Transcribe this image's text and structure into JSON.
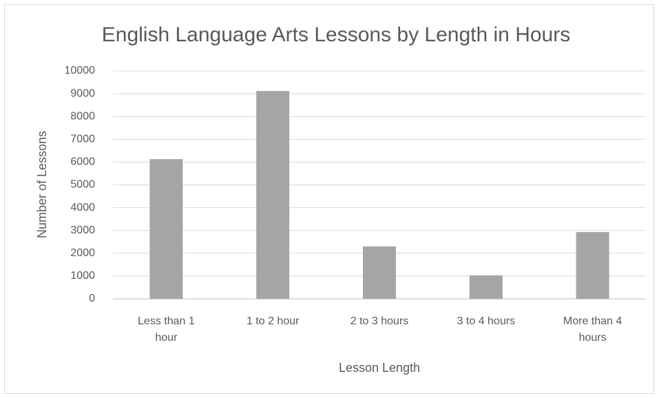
{
  "chart_data": {
    "type": "bar",
    "title": "English Language Arts Lessons by Length in Hours",
    "x_label": "Lesson Length",
    "y_label": "Number of Lessons",
    "categories": [
      "Less than 1 hour",
      "1 to 2 hour",
      "2 to 3 hours",
      "3 to 4 hours",
      "More than 4 hours"
    ],
    "values": [
      6130,
      9120,
      2300,
      1030,
      2930
    ],
    "color": "#a5a5a5",
    "ylim": [
      0,
      10000
    ],
    "yticks": [
      0,
      1000,
      2000,
      3000,
      4000,
      5000,
      6000,
      7000,
      8000,
      9000,
      10000
    ],
    "grid": true
  }
}
